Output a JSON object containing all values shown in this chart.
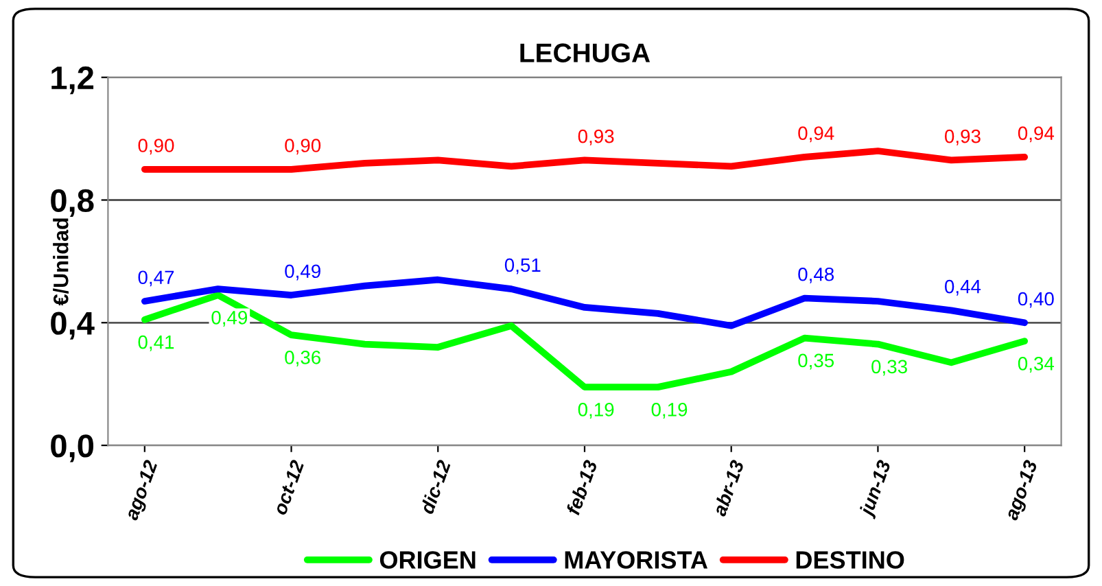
{
  "chart_data": {
    "type": "line",
    "title": "LECHUGA",
    "ylabel": "€/Unidad",
    "categories": [
      "ago-12",
      null,
      "oct-12",
      null,
      "dic-12",
      null,
      "feb-13",
      null,
      "abr-13",
      null,
      "jun-13",
      null,
      "ago-13"
    ],
    "series": [
      {
        "name": "ORIGEN",
        "color": "#00ff00",
        "values": [
          0.41,
          0.49,
          0.36,
          0.33,
          0.32,
          0.39,
          0.19,
          0.19,
          0.24,
          0.35,
          0.33,
          0.27,
          0.34
        ],
        "value_labels": [
          "0,41",
          "0,49",
          "0,36",
          null,
          null,
          null,
          "0,19",
          "0,19",
          null,
          "0,35",
          "0,33",
          null,
          "0,34"
        ]
      },
      {
        "name": "MAYORISTA",
        "color": "#0000ff",
        "values": [
          0.47,
          0.51,
          0.49,
          0.52,
          0.54,
          0.51,
          0.45,
          0.43,
          0.39,
          0.48,
          0.47,
          0.44,
          0.4
        ],
        "value_labels": [
          "0,47",
          null,
          "0,49",
          null,
          null,
          "0,51",
          null,
          null,
          null,
          "0,48",
          null,
          "0,44",
          "0,40"
        ]
      },
      {
        "name": "DESTINO",
        "color": "#ff0000",
        "values": [
          0.9,
          0.9,
          0.9,
          0.92,
          0.93,
          0.91,
          0.93,
          0.92,
          0.91,
          0.94,
          0.96,
          0.93,
          0.94
        ],
        "value_labels": [
          "0,90",
          null,
          "0,90",
          null,
          null,
          null,
          "0,93",
          null,
          null,
          "0,94",
          null,
          "0,93",
          "0,94"
        ]
      }
    ],
    "ylim": [
      0,
      1.2
    ],
    "yticks": [
      {
        "value": 0,
        "label": "0,0"
      },
      {
        "value": 0.4,
        "label": "0,4"
      },
      {
        "value": 0.8,
        "label": "0,8"
      },
      {
        "value": 1.2,
        "label": "1,2"
      }
    ],
    "grid": "y",
    "legend": "bottom",
    "marker": "none",
    "line_style": "solid"
  }
}
